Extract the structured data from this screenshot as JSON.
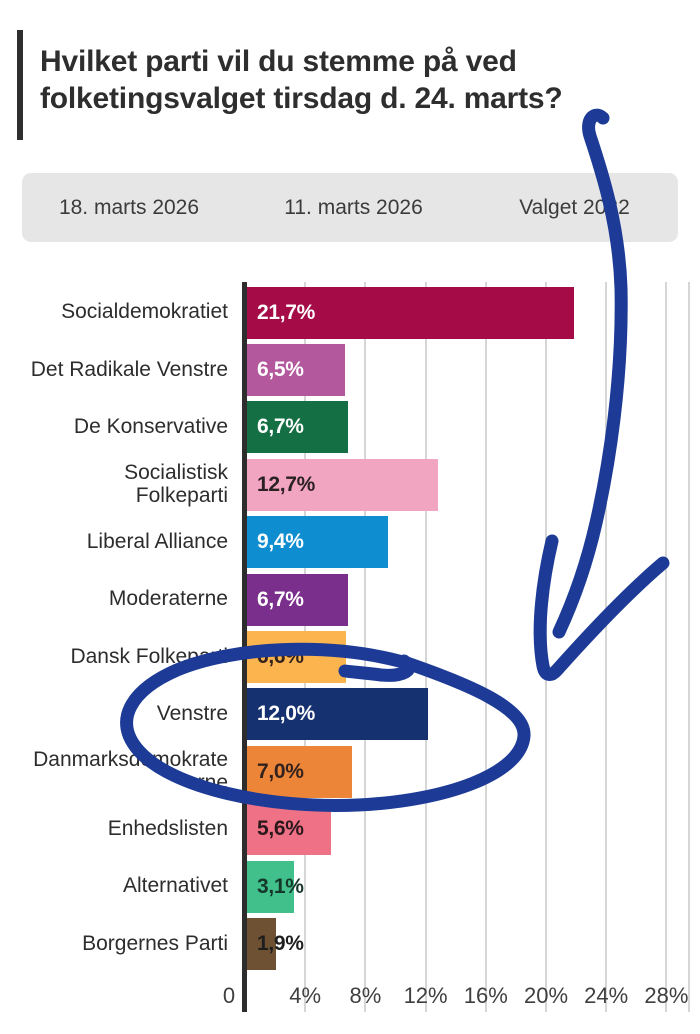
{
  "header": {
    "title": "Hvilket parti vil du stemme på ved folketingsvalget tirsdag d. 24. marts?"
  },
  "tabs": [
    {
      "label": "18. marts 2026",
      "active": true
    },
    {
      "label": "11. marts 2026",
      "active": false
    },
    {
      "label": "Valget 2022",
      "active": false
    }
  ],
  "chart_data": {
    "type": "bar",
    "orientation": "horizontal",
    "title": "Hvilket parti vil du stemme på ved folketingsvalget tirsdag d. 24. marts?",
    "categories": [
      "Socialdemokratiet",
      "Det Radikale Venstre",
      "De Konservative",
      "Socialistisk Folkeparti",
      "Liberal Alliance",
      "Moderaterne",
      "Dansk Folkeparti",
      "Venstre",
      "Danmarksdemokraterne",
      "Enhedslisten",
      "Alternativet",
      "Borgernes Parti"
    ],
    "values": [
      21.7,
      6.5,
      6.7,
      12.7,
      9.4,
      6.7,
      6.6,
      12.0,
      7.0,
      5.6,
      3.1,
      1.9
    ],
    "value_labels": [
      "21,7%",
      "6,5%",
      "6,7%",
      "12,7%",
      "9,4%",
      "6,7%",
      "6,6%",
      "12,0%",
      "7,0%",
      "5,6%",
      "3,1%",
      "1,9%"
    ],
    "bar_colors": [
      "#a50b47",
      "#b4589e",
      "#156f45",
      "#f2a5c0",
      "#0e8ed0",
      "#7b2f8c",
      "#fbb44e",
      "#15316f",
      "#ed8538",
      "#ee7186",
      "#41c08c",
      "#6e5133"
    ],
    "value_label_colors": [
      "#ffffff",
      "#ffffff",
      "#ffffff",
      "#2a2123",
      "#ffffff",
      "#ffffff",
      "#33221d",
      "#ffffff",
      "#33221d",
      "#2a181c",
      "#15372a",
      "#1e1e1e"
    ],
    "xlabel": "",
    "ylabel": "",
    "x_ticks": [
      {
        "value": 0,
        "label": "0"
      },
      {
        "value": 4,
        "label": "4%"
      },
      {
        "value": 8,
        "label": "8%"
      },
      {
        "value": 12,
        "label": "12%"
      },
      {
        "value": 16,
        "label": "16%"
      },
      {
        "value": 20,
        "label": "20%"
      },
      {
        "value": 24,
        "label": "24%"
      },
      {
        "value": 28,
        "label": "28%"
      }
    ],
    "xlim": [
      0,
      29.5
    ],
    "grid": true,
    "legend": false
  },
  "annotation": {
    "color": "#1d3b96",
    "description": "hand-drawn blue circle around the Venstre row with an arrow pointing down to it"
  }
}
